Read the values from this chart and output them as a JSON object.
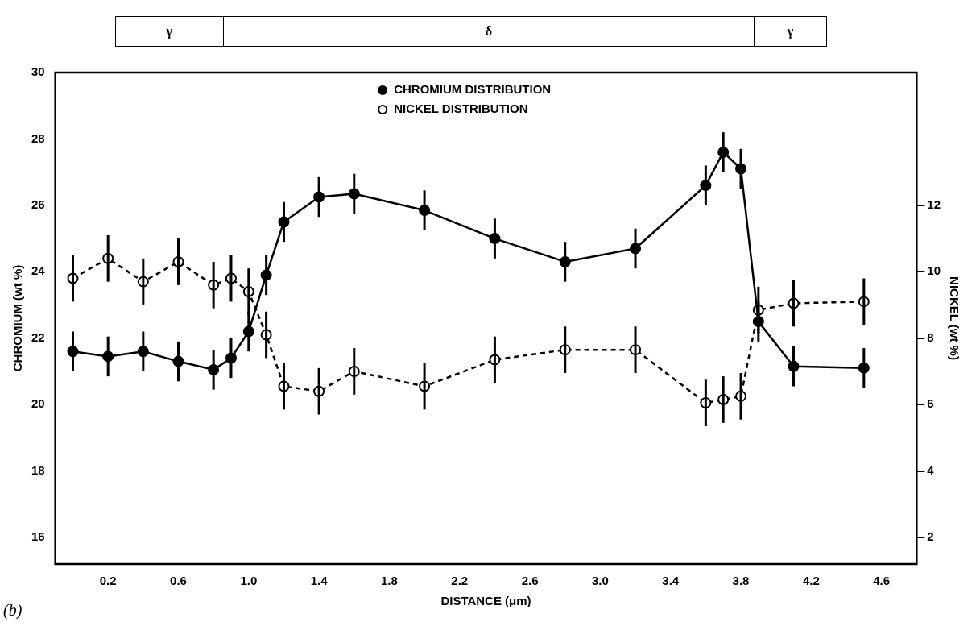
{
  "chart_data": {
    "type": "line",
    "x": [
      0,
      0.2,
      0.4,
      0.6,
      0.8,
      0.9,
      1.0,
      1.1,
      1.2,
      1.4,
      1.6,
      2.0,
      2.4,
      2.8,
      3.2,
      3.6,
      3.7,
      3.8,
      3.9,
      4.1,
      4.5
    ],
    "series": [
      {
        "name": "CHROMIUM DISTRIBUTION",
        "color": "#000000",
        "line_style": "solid",
        "values": [
          21.6,
          21.45,
          21.6,
          21.3,
          21.05,
          21.4,
          22.2,
          23.9,
          25.5,
          26.25,
          26.35,
          25.85,
          25.0,
          24.3,
          24.7,
          26.6,
          27.6,
          27.1,
          22.5,
          21.15,
          21.1
        ],
        "errors": [
          0.6,
          0.6,
          0.6,
          0.6,
          0.6,
          0.6,
          0.6,
          0.6,
          0.6,
          0.6,
          0.6,
          0.6,
          0.6,
          0.6,
          0.6,
          0.6,
          0.6,
          0.6,
          0.6,
          0.6,
          0.6
        ]
      },
      {
        "name": "NICKEL DISTRIBUTION",
        "color": "#000000",
        "line_style": "dashed",
        "axis": "y2",
        "values": [
          9.8,
          10.4,
          9.7,
          10.3,
          9.6,
          9.8,
          9.4,
          8.1,
          6.55,
          6.4,
          7.0,
          6.55,
          7.35,
          7.65,
          7.65,
          6.05,
          6.15,
          6.25,
          8.85,
          9.05,
          9.1
        ],
        "errors": [
          0.7,
          0.7,
          0.7,
          0.7,
          0.7,
          0.7,
          0.7,
          0.7,
          0.7,
          0.7,
          0.7,
          0.7,
          0.7,
          0.7,
          0.7,
          0.7,
          0.7,
          0.7,
          0.7,
          0.7,
          0.7
        ]
      }
    ],
    "xlabel": "DISTANCE (μm)",
    "ylabel": "CHROMIUM (wt %)",
    "y2label": "NICKEL (wt %)",
    "xlim": [
      -0.1,
      4.8
    ],
    "xticks": [
      0.2,
      0.6,
      {
        "value": 1,
        "label": "1.0"
      },
      1.4,
      1.8,
      2.2,
      2.6,
      {
        "value": 3,
        "label": "3.0"
      },
      3.4,
      3.8,
      4.2,
      4.6
    ],
    "ylim": [
      15.2,
      30
    ],
    "yticks": [
      16,
      18,
      20,
      22,
      24,
      26,
      28,
      30
    ],
    "y2lim": [
      1.2,
      16
    ],
    "y2ticks": [
      2,
      4,
      6,
      8,
      10,
      12
    ],
    "marker": "circle",
    "grid": false,
    "legend": "top",
    "annotations": [
      "γ",
      "δ",
      "γ",
      "(b)"
    ]
  }
}
